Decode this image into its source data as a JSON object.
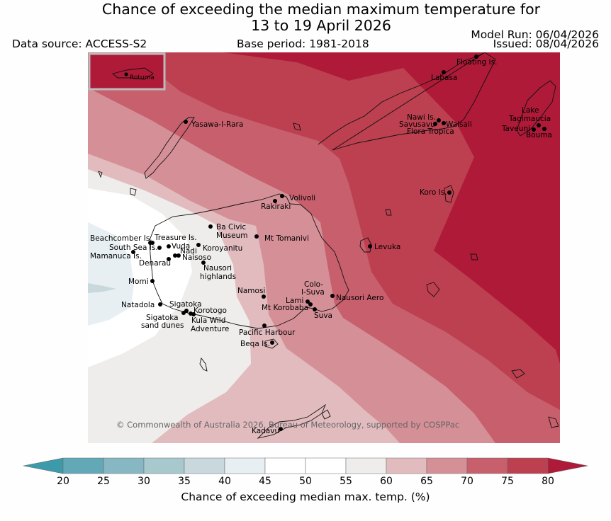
{
  "title": {
    "line1": "Chance of exceeding the median maximum temperature for",
    "line2": "13 to 19 April 2026"
  },
  "meta": {
    "data_source": "Data source: ACCESS-S2",
    "base_period": "Base period: 1981-2018",
    "model_run": "Model Run: 06/04/2026",
    "issued": "Issued: 08/04/2026"
  },
  "map": {
    "region": "Fiji",
    "inset_label": "Rotuma",
    "copyright": "© Commonwealth of Australia 2026, Bureau of Meteorology, supported by COSPPac",
    "places": [
      {
        "id": "floating-is",
        "name": "Floating Is."
      },
      {
        "id": "labasa",
        "name": "Labasa"
      },
      {
        "id": "yasawa",
        "name": "Yasawa-I-Rara"
      },
      {
        "id": "nawi",
        "name": "Nawi Is."
      },
      {
        "id": "savusavu",
        "name": "Savusavu"
      },
      {
        "id": "waisali",
        "name": "Waisali"
      },
      {
        "id": "flora",
        "name": "Flora Tropica"
      },
      {
        "id": "lake-tagimaucia-1",
        "name": "Lake"
      },
      {
        "id": "lake-tagimaucia-2",
        "name": "Tagimaucia"
      },
      {
        "id": "taveuni",
        "name": "Taveuni"
      },
      {
        "id": "bouma",
        "name": "Bouma"
      },
      {
        "id": "koro",
        "name": "Koro Is."
      },
      {
        "id": "volivoli",
        "name": "Volivoli"
      },
      {
        "id": "rakiraki",
        "name": "Rakiraki"
      },
      {
        "id": "ba-civic-1",
        "name": "Ba Civic"
      },
      {
        "id": "ba-civic-2",
        "name": "Museum"
      },
      {
        "id": "mt-tomanivi",
        "name": "Mt Tomanivi"
      },
      {
        "id": "beachcomber",
        "name": "Beachcomber Is."
      },
      {
        "id": "treasure",
        "name": "Treasure Is."
      },
      {
        "id": "vuda",
        "name": "Vuda"
      },
      {
        "id": "south-sea",
        "name": "South Sea Is."
      },
      {
        "id": "nadi",
        "name": "Nadi"
      },
      {
        "id": "koroyanitu",
        "name": "Koroyanitu"
      },
      {
        "id": "naisoso",
        "name": "Naisoso"
      },
      {
        "id": "mamanuca",
        "name": "Mamanuca Is."
      },
      {
        "id": "denarau",
        "name": "Denarau"
      },
      {
        "id": "nausori-hl-1",
        "name": "Nausori"
      },
      {
        "id": "nausori-hl-2",
        "name": "highlands"
      },
      {
        "id": "levuka",
        "name": "Levuka"
      },
      {
        "id": "momi",
        "name": "Momi"
      },
      {
        "id": "colo-suva-1",
        "name": "Colo-"
      },
      {
        "id": "colo-suva-2",
        "name": "I-Suva"
      },
      {
        "id": "namosi",
        "name": "Namosi"
      },
      {
        "id": "nausori-aero",
        "name": "Nausori Aero"
      },
      {
        "id": "lami",
        "name": "Lami"
      },
      {
        "id": "mt-korobaba",
        "name": "Mt Korobaba"
      },
      {
        "id": "suva",
        "name": "Suva"
      },
      {
        "id": "natadola",
        "name": "Natadola"
      },
      {
        "id": "sigatoka",
        "name": "Sigatoka"
      },
      {
        "id": "korotogo",
        "name": "Korotogo"
      },
      {
        "id": "sigatoka-dunes-1",
        "name": "Sigatoka"
      },
      {
        "id": "sigatoka-dunes-2",
        "name": "sand dunes"
      },
      {
        "id": "kula-1",
        "name": "Kula Wild"
      },
      {
        "id": "kula-2",
        "name": "Adventure"
      },
      {
        "id": "pacific-harbour",
        "name": "Pacific Harbour"
      },
      {
        "id": "beqa",
        "name": "Beqa Is."
      },
      {
        "id": "kadavu",
        "name": "Kadavu"
      }
    ]
  },
  "colorbar": {
    "label": "Chance of exceeding median max. temp. (%)",
    "ticks": [
      "20",
      "25",
      "30",
      "35",
      "40",
      "45",
      "50",
      "55",
      "60",
      "65",
      "70",
      "75",
      "80"
    ],
    "under_color": "#3d9aaa",
    "bins": [
      {
        "from": 20,
        "to": 25,
        "color": "#62a8b7"
      },
      {
        "from": 25,
        "to": 30,
        "color": "#86b7c2"
      },
      {
        "from": 30,
        "to": 35,
        "color": "#a7c8cd"
      },
      {
        "from": 35,
        "to": 40,
        "color": "#c9d8dd"
      },
      {
        "from": 40,
        "to": 45,
        "color": "#e8eff2"
      },
      {
        "from": 45,
        "to": 50,
        "color": "#ffffff"
      },
      {
        "from": 50,
        "to": 55,
        "color": "#ffffff"
      },
      {
        "from": 55,
        "to": 60,
        "color": "#efedeb"
      },
      {
        "from": 60,
        "to": 65,
        "color": "#e2bbbf"
      },
      {
        "from": 65,
        "to": 70,
        "color": "#d58f97"
      },
      {
        "from": 70,
        "to": 75,
        "color": "#c75f6d"
      },
      {
        "from": 75,
        "to": 80,
        "color": "#bc404f"
      }
    ],
    "over_color": "#ae1a37"
  }
}
